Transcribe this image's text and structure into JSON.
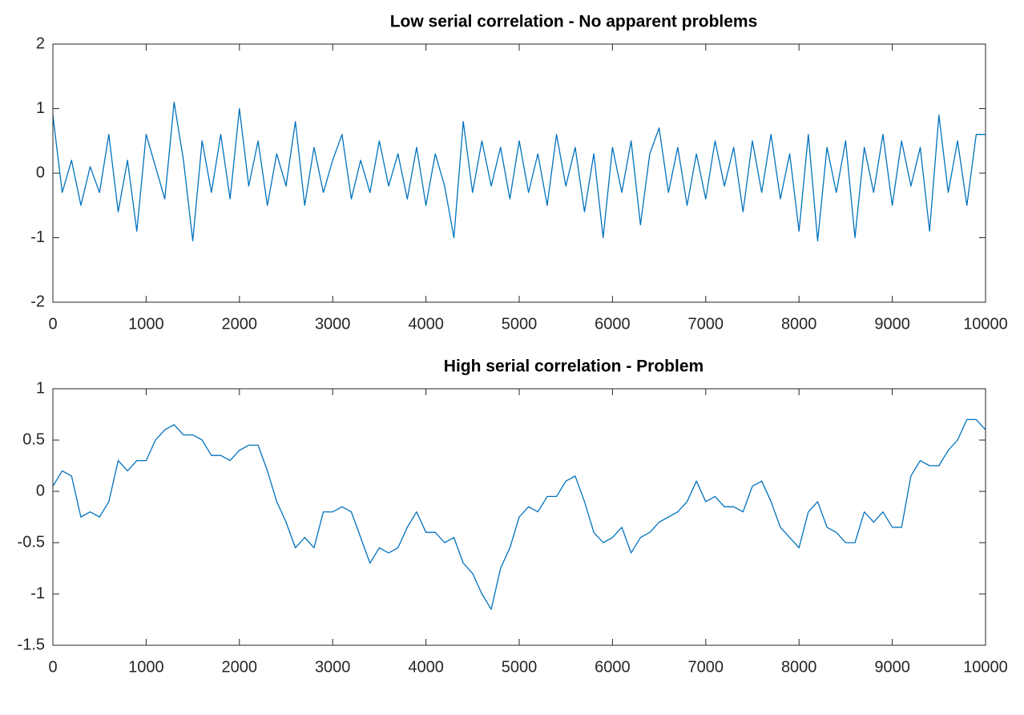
{
  "chart_data": [
    {
      "type": "line",
      "title": "Low serial correlation - No apparent problems",
      "color": "#0072bd",
      "x": [
        0,
        100,
        200,
        300,
        400,
        500,
        600,
        700,
        800,
        900,
        1000,
        1100,
        1200,
        1300,
        1400,
        1500,
        1600,
        1700,
        1800,
        1900,
        2000,
        2100,
        2200,
        2300,
        2400,
        2500,
        2600,
        2700,
        2800,
        2900,
        3000,
        3100,
        3200,
        3300,
        3400,
        3500,
        3600,
        3700,
        3800,
        3900,
        4000,
        4100,
        4200,
        4300,
        4400,
        4500,
        4600,
        4700,
        4800,
        4900,
        5000,
        5100,
        5200,
        5300,
        5400,
        5500,
        5600,
        5700,
        5800,
        5900,
        6000,
        6100,
        6200,
        6300,
        6400,
        6500,
        6600,
        6700,
        6800,
        6900,
        7000,
        7100,
        7200,
        7300,
        7400,
        7500,
        7600,
        7700,
        7800,
        7900,
        8000,
        8100,
        8200,
        8300,
        8400,
        8500,
        8600,
        8700,
        8800,
        8900,
        9000,
        9100,
        9200,
        9300,
        9400,
        9500,
        9600,
        9700,
        9800,
        9900,
        10000
      ],
      "values": [
        0.9,
        -0.3,
        0.2,
        -0.5,
        0.1,
        -0.3,
        0.6,
        -0.6,
        0.2,
        -0.9,
        0.6,
        0.1,
        -0.4,
        1.1,
        0.2,
        -1.05,
        0.5,
        -0.3,
        0.6,
        -0.4,
        1.0,
        -0.2,
        0.5,
        -0.5,
        0.3,
        -0.2,
        0.8,
        -0.5,
        0.4,
        -0.3,
        0.2,
        0.6,
        -0.4,
        0.2,
        -0.3,
        0.5,
        -0.2,
        0.3,
        -0.4,
        0.4,
        -0.5,
        0.3,
        -0.2,
        -1.0,
        0.8,
        -0.3,
        0.5,
        -0.2,
        0.4,
        -0.4,
        0.5,
        -0.3,
        0.3,
        -0.5,
        0.6,
        -0.2,
        0.4,
        -0.6,
        0.3,
        -1.0,
        0.4,
        -0.3,
        0.5,
        -0.8,
        0.3,
        0.7,
        -0.3,
        0.4,
        -0.5,
        0.3,
        -0.4,
        0.5,
        -0.2,
        0.4,
        -0.6,
        0.5,
        -0.3,
        0.6,
        -0.4,
        0.3,
        -0.9,
        0.6,
        -1.05,
        0.4,
        -0.3,
        0.5,
        -1.0,
        0.4,
        -0.3,
        0.6,
        -0.5,
        0.5,
        -0.2,
        0.4,
        -0.9,
        0.9,
        -0.3,
        0.5,
        -0.5,
        0.6,
        0.6
      ],
      "xlim": [
        0,
        10000
      ],
      "xticks": [
        0,
        1000,
        2000,
        3000,
        4000,
        5000,
        6000,
        7000,
        8000,
        9000,
        10000
      ],
      "ylim": [
        -2,
        2
      ],
      "yticks": [
        -2,
        -1,
        0,
        1,
        2
      ]
    },
    {
      "type": "line",
      "title": "High serial correlation - Problem",
      "color": "#0072bd",
      "x": [
        0,
        100,
        200,
        300,
        400,
        500,
        600,
        700,
        800,
        900,
        1000,
        1100,
        1200,
        1300,
        1400,
        1500,
        1600,
        1700,
        1800,
        1900,
        2000,
        2100,
        2200,
        2300,
        2400,
        2500,
        2600,
        2700,
        2800,
        2900,
        3000,
        3100,
        3200,
        3300,
        3400,
        3500,
        3600,
        3700,
        3800,
        3900,
        4000,
        4100,
        4200,
        4300,
        4400,
        4500,
        4600,
        4700,
        4800,
        4900,
        5000,
        5100,
        5200,
        5300,
        5400,
        5500,
        5600,
        5700,
        5800,
        5900,
        6000,
        6100,
        6200,
        6300,
        6400,
        6500,
        6600,
        6700,
        6800,
        6900,
        7000,
        7100,
        7200,
        7300,
        7400,
        7500,
        7600,
        7700,
        7800,
        7900,
        8000,
        8100,
        8200,
        8300,
        8400,
        8500,
        8600,
        8700,
        8800,
        8900,
        9000,
        9100,
        9200,
        9300,
        9400,
        9500,
        9600,
        9700,
        9800,
        9900,
        10000
      ],
      "values": [
        0.05,
        0.2,
        0.15,
        -0.25,
        -0.2,
        -0.25,
        -0.1,
        0.3,
        0.2,
        0.3,
        0.3,
        0.5,
        0.6,
        0.65,
        0.55,
        0.55,
        0.5,
        0.35,
        0.35,
        0.3,
        0.4,
        0.45,
        0.45,
        0.2,
        -0.1,
        -0.3,
        -0.55,
        -0.45,
        -0.55,
        -0.2,
        -0.2,
        -0.15,
        -0.2,
        -0.45,
        -0.7,
        -0.55,
        -0.6,
        -0.55,
        -0.35,
        -0.2,
        -0.4,
        -0.4,
        -0.5,
        -0.45,
        -0.7,
        -0.8,
        -1.0,
        -1.15,
        -0.75,
        -0.55,
        -0.25,
        -0.15,
        -0.2,
        -0.05,
        -0.05,
        0.1,
        0.15,
        -0.1,
        -0.4,
        -0.5,
        -0.45,
        -0.35,
        -0.6,
        -0.45,
        -0.4,
        -0.3,
        -0.25,
        -0.2,
        -0.1,
        0.1,
        -0.1,
        -0.05,
        -0.15,
        -0.15,
        -0.2,
        0.05,
        0.1,
        -0.1,
        -0.35,
        -0.45,
        -0.55,
        -0.2,
        -0.1,
        -0.35,
        -0.4,
        -0.5,
        -0.5,
        -0.2,
        -0.3,
        -0.2,
        -0.35,
        -0.35,
        0.15,
        0.3,
        0.25,
        0.25,
        0.4,
        0.5,
        0.7,
        0.7,
        0.6
      ],
      "xlim": [
        0,
        10000
      ],
      "xticks": [
        0,
        1000,
        2000,
        3000,
        4000,
        5000,
        6000,
        7000,
        8000,
        9000,
        10000
      ],
      "ylim": [
        -1.5,
        1
      ],
      "yticks": [
        -1.5,
        -1,
        -0.5,
        0,
        0.5,
        1
      ]
    }
  ]
}
